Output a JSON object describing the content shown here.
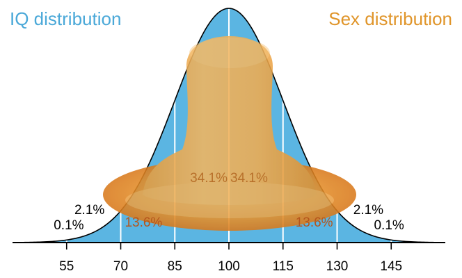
{
  "titles": {
    "left": "IQ distribution",
    "right": "Sex distribution"
  },
  "colors": {
    "left_title": "#4aa8d8",
    "right_title": "#e0952a",
    "fill": "#5bb5e2",
    "curve": "#000000",
    "separator": "#ffffff",
    "overlay": "#e89a33"
  },
  "chart_data": {
    "type": "area",
    "distribution": "normal",
    "mean": 100,
    "sd": 15,
    "xlim": [
      40,
      160
    ],
    "x_ticks": [
      "55",
      "70",
      "85",
      "100",
      "115",
      "130",
      "145"
    ],
    "region_labels": [
      {
        "text": "0.1%",
        "x": 47.5
      },
      {
        "text": "2.1%",
        "x": 62.5
      },
      {
        "text": "13.6%",
        "x": 77.5
      },
      {
        "text": "34.1%",
        "x": 92.5
      },
      {
        "text": "34.1%",
        "x": 107.5
      },
      {
        "text": "13.6%",
        "x": 122.5
      },
      {
        "text": "2.1%",
        "x": 137.5
      },
      {
        "text": "0.1%",
        "x": 152.5
      }
    ]
  }
}
